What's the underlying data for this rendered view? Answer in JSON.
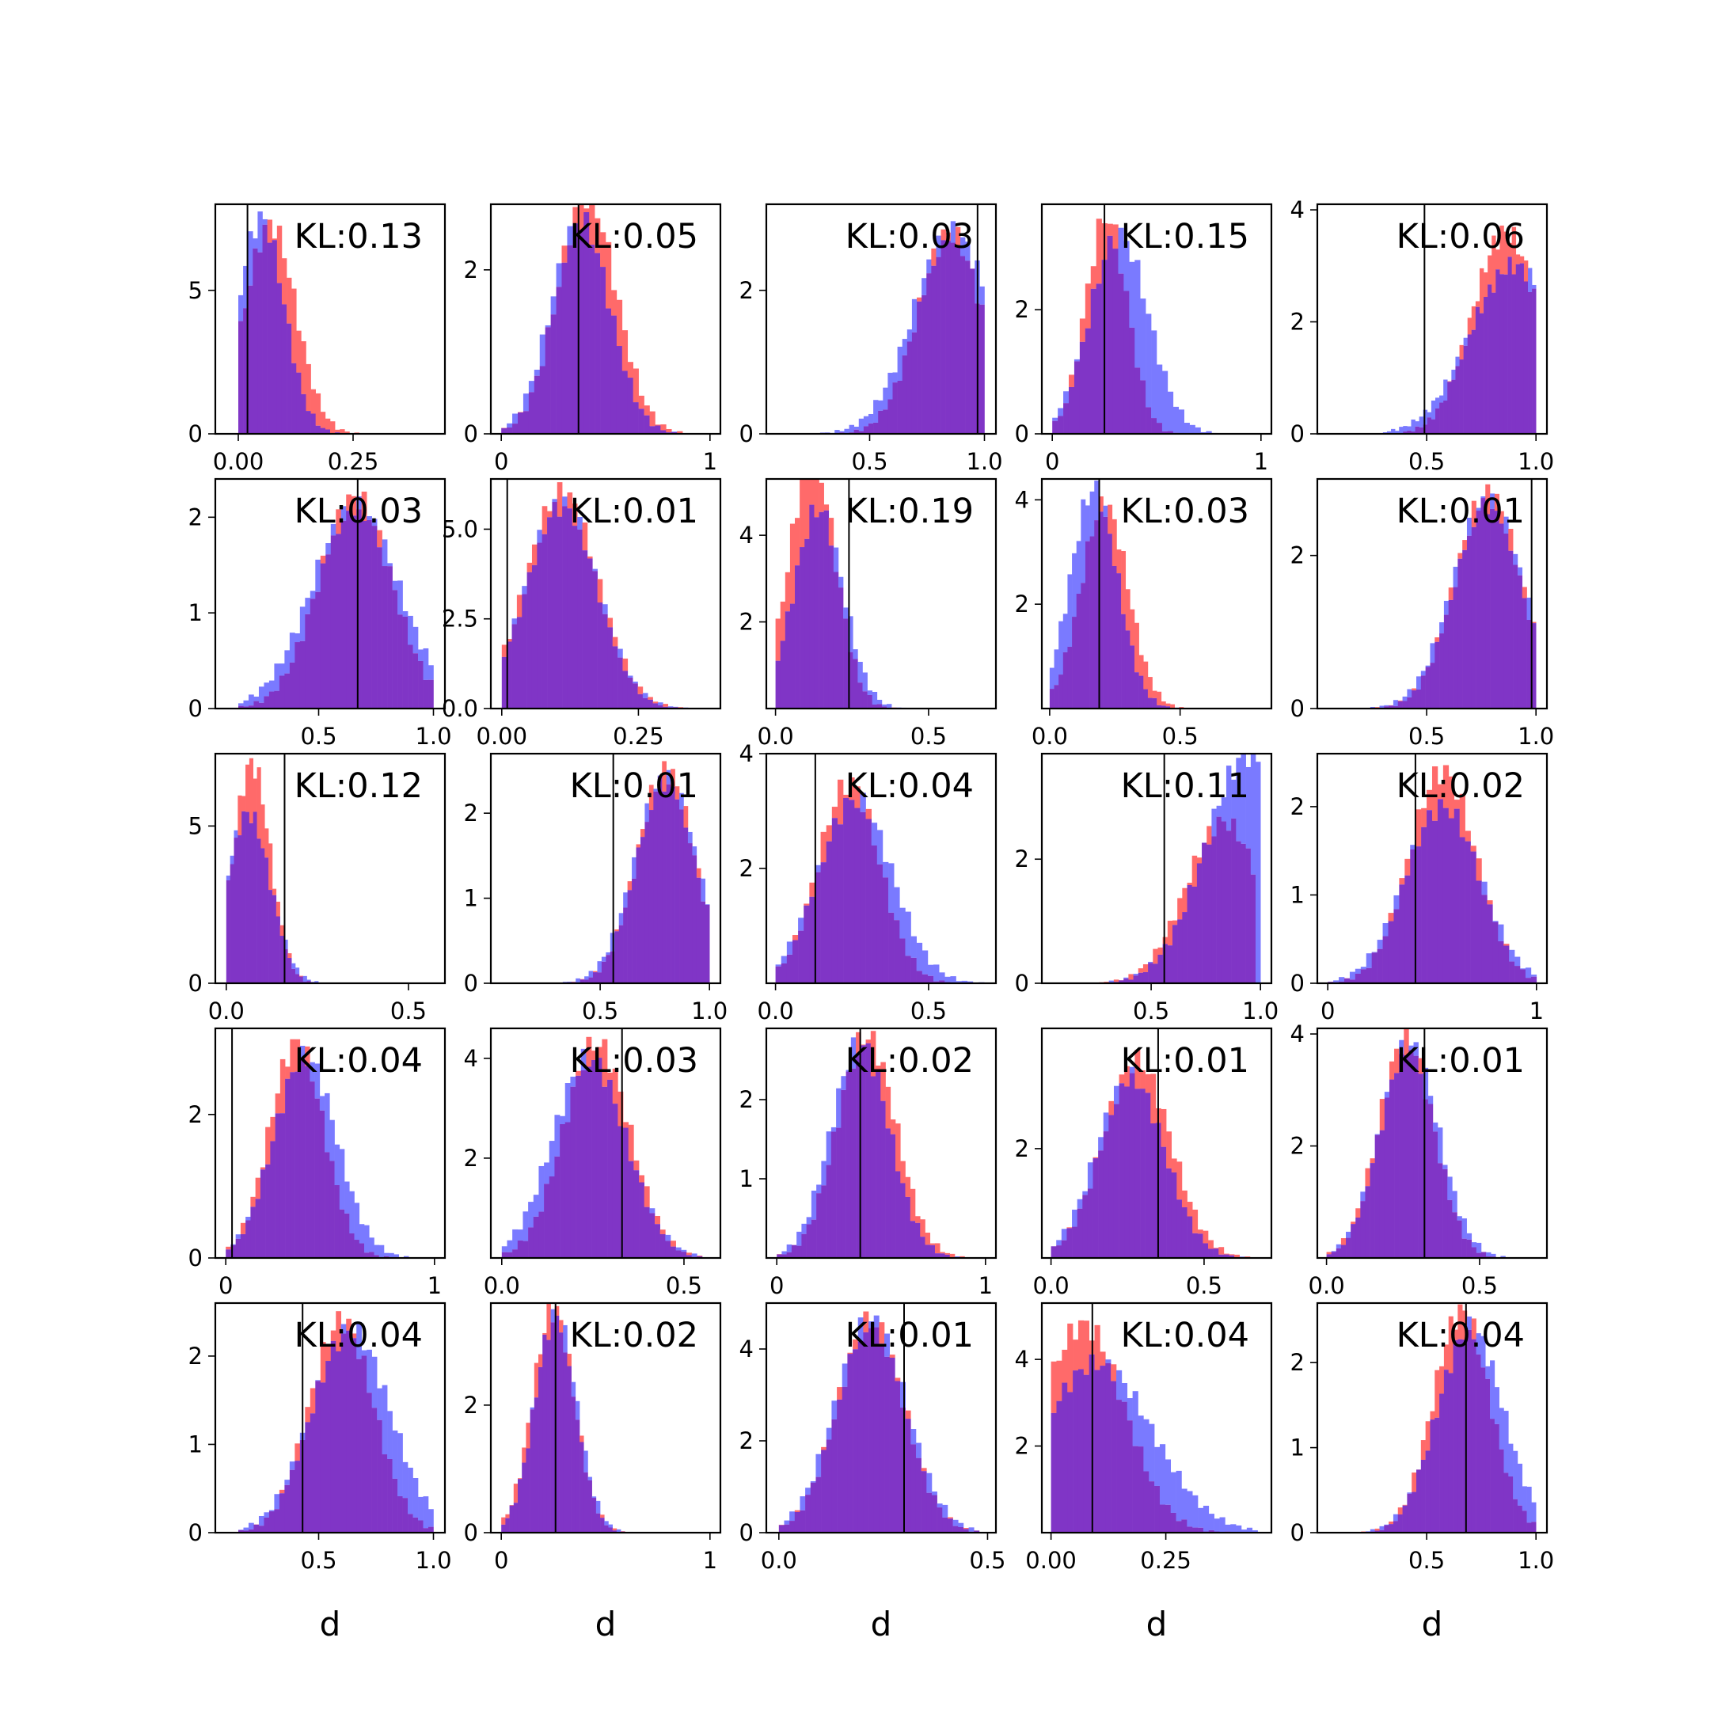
{
  "chart_data": {
    "type": "histogram-grid",
    "grid": {
      "rows": 5,
      "cols": 5
    },
    "colors": {
      "red": "#ff6a6a",
      "blue": "#7a7aff",
      "overlap": "#8035c6",
      "axis": "#000000"
    },
    "xlabel": "d",
    "panels": [
      {
        "kl": "KL:0.13",
        "xlim": [
          -0.05,
          0.45
        ],
        "ylim": [
          0,
          8
        ],
        "xticks": [
          "0.00",
          "0.25"
        ],
        "yticks": [
          "0",
          "5"
        ],
        "vline": 0.02,
        "red": {
          "mu": 0.07,
          "sd": 0.055,
          "min": 0.0,
          "max": 0.4,
          "peak": 7.3
        },
        "blue": {
          "mu": 0.05,
          "sd": 0.05,
          "min": 0.0,
          "max": 0.4,
          "peak": 7.5
        }
      },
      {
        "kl": "KL:0.05",
        "xlim": [
          -0.05,
          1.05
        ],
        "ylim": [
          0,
          2.8
        ],
        "xticks": [
          "0",
          "1"
        ],
        "yticks": [
          "0",
          "2"
        ],
        "vline": 0.37,
        "red": {
          "mu": 0.41,
          "sd": 0.14,
          "min": 0.0,
          "max": 1.0,
          "peak": 2.9
        },
        "blue": {
          "mu": 0.38,
          "sd": 0.14,
          "min": 0.0,
          "max": 1.0,
          "peak": 2.6
        }
      },
      {
        "kl": "KL:0.03",
        "xlim": [
          0.05,
          1.05
        ],
        "ylim": [
          0,
          3.2
        ],
        "xticks": [
          "0.5",
          "1.0"
        ],
        "yticks": [
          "0",
          "2"
        ],
        "vline": 0.97,
        "red": {
          "mu": 0.85,
          "sd": 0.14,
          "min": 0.2,
          "max": 1.0,
          "peak": 2.8
        },
        "blue": {
          "mu": 0.86,
          "sd": 0.17,
          "min": 0.2,
          "max": 1.0,
          "peak": 2.8
        }
      },
      {
        "kl": "KL:0.15",
        "xlim": [
          -0.05,
          1.05
        ],
        "ylim": [
          0,
          3.7
        ],
        "xticks": [
          "0",
          "1"
        ],
        "yticks": [
          "0",
          "2"
        ],
        "vline": 0.25,
        "red": {
          "mu": 0.26,
          "sd": 0.1,
          "min": 0.0,
          "max": 0.85,
          "peak": 3.5
        },
        "blue": {
          "mu": 0.32,
          "sd": 0.14,
          "min": 0.0,
          "max": 1.0,
          "peak": 3.2
        }
      },
      {
        "kl": "KL:0.06",
        "xlim": [
          0.0,
          1.05
        ],
        "ylim": [
          0,
          4.1
        ],
        "xticks": [
          "0.5",
          "1.0"
        ],
        "yticks": [
          "0",
          "2",
          "4"
        ],
        "vline": 0.49,
        "red": {
          "mu": 0.86,
          "sd": 0.15,
          "min": 0.4,
          "max": 1.0,
          "peak": 3.6
        },
        "blue": {
          "mu": 0.9,
          "sd": 0.2,
          "min": 0.3,
          "max": 1.0,
          "peak": 3.0
        }
      },
      {
        "kl": "KL:0.03",
        "xlim": [
          0.05,
          1.05
        ],
        "ylim": [
          0,
          2.4
        ],
        "xticks": [
          "0.5",
          "1.0"
        ],
        "yticks": [
          "0",
          "1",
          "2"
        ],
        "vline": 0.67,
        "red": {
          "mu": 0.66,
          "sd": 0.16,
          "min": 0.15,
          "max": 1.0,
          "peak": 2.2
        },
        "blue": {
          "mu": 0.66,
          "sd": 0.19,
          "min": 0.15,
          "max": 1.0,
          "peak": 2.1
        }
      },
      {
        "kl": "KL:0.01",
        "xlim": [
          -0.02,
          0.4
        ],
        "ylim": [
          0,
          6.4
        ],
        "xticks": [
          "0.00",
          "0.25"
        ],
        "yticks": [
          "0.0",
          "2.5",
          "5.0"
        ],
        "vline": 0.01,
        "red": {
          "mu": 0.11,
          "sd": 0.065,
          "min": 0.0,
          "max": 0.35,
          "peak": 6.0
        },
        "blue": {
          "mu": 0.11,
          "sd": 0.065,
          "min": 0.0,
          "max": 0.35,
          "peak": 5.7
        }
      },
      {
        "kl": "KL:0.19",
        "xlim": [
          -0.03,
          0.72
        ],
        "ylim": [
          0,
          5.3
        ],
        "xticks": [
          "0.0",
          "0.5"
        ],
        "yticks": [
          "2",
          "4"
        ],
        "vline": 0.24,
        "red": {
          "mu": 0.12,
          "sd": 0.075,
          "min": 0.0,
          "max": 0.55,
          "peak": 5.8
        },
        "blue": {
          "mu": 0.14,
          "sd": 0.08,
          "min": 0.0,
          "max": 0.6,
          "peak": 4.6
        }
      },
      {
        "kl": "KL:0.03",
        "xlim": [
          -0.03,
          0.85
        ],
        "ylim": [
          0,
          4.4
        ],
        "xticks": [
          "0.0",
          "0.5"
        ],
        "yticks": [
          "2",
          "4"
        ],
        "vline": 0.19,
        "red": {
          "mu": 0.21,
          "sd": 0.09,
          "min": 0.0,
          "max": 0.65,
          "peak": 3.9
        },
        "blue": {
          "mu": 0.17,
          "sd": 0.09,
          "min": 0.0,
          "max": 0.65,
          "peak": 4.2
        }
      },
      {
        "kl": "KL:0.01",
        "xlim": [
          0.0,
          1.05
        ],
        "ylim": [
          0,
          3.0
        ],
        "xticks": [
          "0.5",
          "1.0"
        ],
        "yticks": [
          "0",
          "2"
        ],
        "vline": 0.98,
        "red": {
          "mu": 0.78,
          "sd": 0.15,
          "min": 0.2,
          "max": 1.0,
          "peak": 2.8
        },
        "blue": {
          "mu": 0.78,
          "sd": 0.16,
          "min": 0.2,
          "max": 1.0,
          "peak": 2.7
        }
      },
      {
        "kl": "KL:0.12",
        "xlim": [
          -0.03,
          0.6
        ],
        "ylim": [
          0,
          7.3
        ],
        "xticks": [
          "0.0",
          "0.5"
        ],
        "yticks": [
          "0",
          "5"
        ],
        "vline": 0.16,
        "red": {
          "mu": 0.07,
          "sd": 0.05,
          "min": 0.0,
          "max": 0.35,
          "peak": 7.0
        },
        "blue": {
          "mu": 0.06,
          "sd": 0.06,
          "min": 0.0,
          "max": 0.4,
          "peak": 5.4
        }
      },
      {
        "kl": "KL:0.01",
        "xlim": [
          0.0,
          1.05
        ],
        "ylim": [
          0,
          2.7
        ],
        "xticks": [
          "0.5",
          "1.0"
        ],
        "yticks": [
          "0",
          "1",
          "2"
        ],
        "vline": 0.56,
        "red": {
          "mu": 0.8,
          "sd": 0.13,
          "min": 0.25,
          "max": 1.0,
          "peak": 2.5
        },
        "blue": {
          "mu": 0.8,
          "sd": 0.14,
          "min": 0.25,
          "max": 1.0,
          "peak": 2.4
        }
      },
      {
        "kl": "KL:0.04",
        "xlim": [
          -0.03,
          0.72
        ],
        "ylim": [
          0,
          4.0
        ],
        "xticks": [
          "0.0",
          "0.5"
        ],
        "yticks": [
          "2",
          "4"
        ],
        "vline": 0.13,
        "red": {
          "mu": 0.24,
          "sd": 0.1,
          "min": 0.0,
          "max": 0.65,
          "peak": 3.5
        },
        "blue": {
          "mu": 0.26,
          "sd": 0.12,
          "min": 0.0,
          "max": 0.7,
          "peak": 3.2
        }
      },
      {
        "kl": "KL:0.11",
        "xlim": [
          0.0,
          1.05
        ],
        "ylim": [
          0,
          3.7
        ],
        "xticks": [
          "0.5",
          "1.0"
        ],
        "yticks": [
          "0",
          "2"
        ],
        "vline": 0.56,
        "red": {
          "mu": 0.83,
          "sd": 0.17,
          "min": 0.15,
          "max": 0.98,
          "peak": 2.6
        },
        "blue": {
          "mu": 0.95,
          "sd": 0.2,
          "min": 0.3,
          "max": 1.0,
          "peak": 3.7
        }
      },
      {
        "kl": "KL:0.02",
        "xlim": [
          -0.05,
          1.05
        ],
        "ylim": [
          0,
          2.6
        ],
        "xticks": [
          "0",
          "1"
        ],
        "yticks": [
          "0",
          "1",
          "2"
        ],
        "vline": 0.42,
        "red": {
          "mu": 0.55,
          "sd": 0.16,
          "min": 0.0,
          "max": 1.0,
          "peak": 2.4
        },
        "blue": {
          "mu": 0.55,
          "sd": 0.18,
          "min": 0.0,
          "max": 1.0,
          "peak": 2.0
        }
      },
      {
        "kl": "KL:0.04",
        "xlim": [
          -0.05,
          1.05
        ],
        "ylim": [
          0,
          3.2
        ],
        "xticks": [
          "0",
          "1"
        ],
        "yticks": [
          "0",
          "2"
        ],
        "vline": 0.03,
        "red": {
          "mu": 0.34,
          "sd": 0.13,
          "min": 0.0,
          "max": 0.9,
          "peak": 3.0
        },
        "blue": {
          "mu": 0.38,
          "sd": 0.15,
          "min": 0.0,
          "max": 0.9,
          "peak": 2.8
        }
      },
      {
        "kl": "KL:0.03",
        "xlim": [
          -0.03,
          0.6
        ],
        "ylim": [
          0,
          4.6
        ],
        "xticks": [
          "0.0",
          "0.5"
        ],
        "yticks": [
          "2",
          "4"
        ],
        "vline": 0.33,
        "red": {
          "mu": 0.26,
          "sd": 0.09,
          "min": 0.0,
          "max": 0.55,
          "peak": 4.3
        },
        "blue": {
          "mu": 0.24,
          "sd": 0.1,
          "min": 0.0,
          "max": 0.55,
          "peak": 4.0
        }
      },
      {
        "kl": "KL:0.02",
        "xlim": [
          -0.05,
          1.05
        ],
        "ylim": [
          0,
          2.9
        ],
        "xticks": [
          "0",
          "1"
        ],
        "yticks": [
          "1",
          "2"
        ],
        "vline": 0.4,
        "red": {
          "mu": 0.43,
          "sd": 0.14,
          "min": 0.0,
          "max": 0.9,
          "peak": 2.8
        },
        "blue": {
          "mu": 0.4,
          "sd": 0.14,
          "min": 0.0,
          "max": 0.9,
          "peak": 2.7
        }
      },
      {
        "kl": "KL:0.01",
        "xlim": [
          -0.03,
          0.72
        ],
        "ylim": [
          0,
          4.2
        ],
        "xticks": [
          "0.0",
          "0.5"
        ],
        "yticks": [
          "2"
        ],
        "vline": 0.35,
        "red": {
          "mu": 0.28,
          "sd": 0.11,
          "min": 0.0,
          "max": 0.65,
          "peak": 3.6
        },
        "blue": {
          "mu": 0.26,
          "sd": 0.11,
          "min": 0.0,
          "max": 0.65,
          "peak": 3.3
        }
      },
      {
        "kl": "KL:0.01",
        "xlim": [
          -0.03,
          0.72
        ],
        "ylim": [
          0,
          4.1
        ],
        "xticks": [
          "0.0",
          "0.5"
        ],
        "yticks": [
          "2",
          "4"
        ],
        "vline": 0.32,
        "red": {
          "mu": 0.26,
          "sd": 0.09,
          "min": 0.0,
          "max": 0.55,
          "peak": 3.9
        },
        "blue": {
          "mu": 0.27,
          "sd": 0.095,
          "min": 0.0,
          "max": 0.6,
          "peak": 3.8
        }
      },
      {
        "kl": "KL:0.04",
        "xlim": [
          0.05,
          1.05
        ],
        "ylim": [
          0,
          2.6
        ],
        "xticks": [
          "0.5",
          "1.0"
        ],
        "yticks": [
          "0",
          "1",
          "2"
        ],
        "vline": 0.43,
        "red": {
          "mu": 0.6,
          "sd": 0.14,
          "min": 0.15,
          "max": 1.0,
          "peak": 2.4
        },
        "blue": {
          "mu": 0.64,
          "sd": 0.17,
          "min": 0.15,
          "max": 1.0,
          "peak": 2.3
        }
      },
      {
        "kl": "KL:0.02",
        "xlim": [
          -0.05,
          1.05
        ],
        "ylim": [
          0,
          3.6
        ],
        "xticks": [
          "0",
          "1"
        ],
        "yticks": [
          "0",
          "2"
        ],
        "vline": 0.26,
        "red": {
          "mu": 0.25,
          "sd": 0.1,
          "min": 0.0,
          "max": 0.75,
          "peak": 3.5
        },
        "blue": {
          "mu": 0.26,
          "sd": 0.1,
          "min": 0.0,
          "max": 0.75,
          "peak": 3.4
        }
      },
      {
        "kl": "KL:0.01",
        "xlim": [
          -0.03,
          0.52
        ],
        "ylim": [
          0,
          5.0
        ],
        "xticks": [
          "0.0",
          "0.5"
        ],
        "yticks": [
          "0",
          "2",
          "4"
        ],
        "vline": 0.3,
        "red": {
          "mu": 0.22,
          "sd": 0.08,
          "min": 0.0,
          "max": 0.48,
          "peak": 4.6
        },
        "blue": {
          "mu": 0.22,
          "sd": 0.085,
          "min": 0.0,
          "max": 0.48,
          "peak": 4.6
        }
      },
      {
        "kl": "KL:0.04",
        "xlim": [
          -0.02,
          0.48
        ],
        "ylim": [
          0,
          5.3
        ],
        "xticks": [
          "0.00",
          "0.25"
        ],
        "yticks": [
          "2",
          "4"
        ],
        "vline": 0.09,
        "red": {
          "mu": 0.07,
          "sd": 0.09,
          "min": 0.0,
          "max": 0.42,
          "peak": 4.8
        },
        "blue": {
          "mu": 0.1,
          "sd": 0.12,
          "min": 0.0,
          "max": 0.45,
          "peak": 3.9
        }
      },
      {
        "kl": "KL:0.04",
        "xlim": [
          0.0,
          1.05
        ],
        "ylim": [
          0,
          2.7
        ],
        "xticks": [
          "0.5",
          "1.0"
        ],
        "yticks": [
          "0",
          "1",
          "2"
        ],
        "vline": 0.68,
        "red": {
          "mu": 0.66,
          "sd": 0.13,
          "min": 0.2,
          "max": 1.0,
          "peak": 2.6
        },
        "blue": {
          "mu": 0.7,
          "sd": 0.15,
          "min": 0.2,
          "max": 1.0,
          "peak": 2.4
        }
      }
    ]
  }
}
